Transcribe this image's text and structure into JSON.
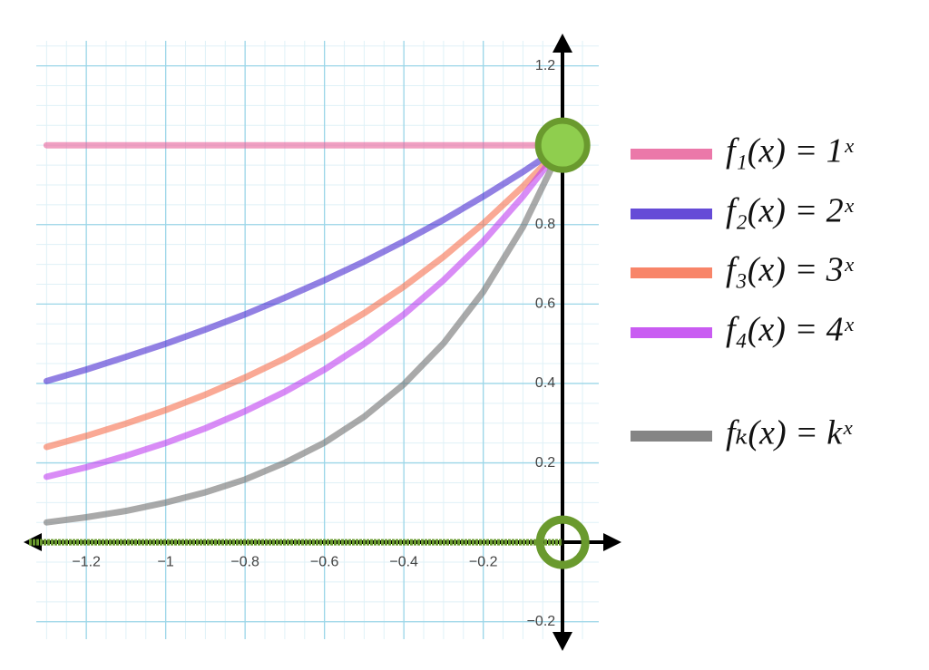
{
  "chart_data": {
    "type": "line",
    "x": [
      -1.3,
      -1.2,
      -1.1,
      -1.0,
      -0.9,
      -0.8,
      -0.7,
      -0.6,
      -0.5,
      -0.4,
      -0.3,
      -0.2,
      -0.1,
      0
    ],
    "series": [
      {
        "name": "f₁(x) = 1ˣ",
        "color": "#e8609a",
        "values": [
          1,
          1,
          1,
          1,
          1,
          1,
          1,
          1,
          1,
          1,
          1,
          1,
          1,
          1
        ]
      },
      {
        "name": "f₂(x) = 2ˣ",
        "color": "#4a2bd0",
        "values": [
          0.406,
          0.435,
          0.467,
          0.5,
          0.536,
          0.574,
          0.616,
          0.66,
          0.707,
          0.758,
          0.812,
          0.871,
          0.933,
          1
        ]
      },
      {
        "name": "f₃(x) = 3ˣ",
        "color": "#f7704f",
        "values": [
          0.24,
          0.268,
          0.299,
          0.333,
          0.372,
          0.415,
          0.463,
          0.517,
          0.577,
          0.644,
          0.719,
          0.803,
          0.896,
          1
        ]
      },
      {
        "name": "f₄(x) = 4ˣ",
        "color": "#c040f0",
        "values": [
          0.165,
          0.189,
          0.218,
          0.25,
          0.287,
          0.33,
          0.379,
          0.435,
          0.5,
          0.574,
          0.66,
          0.758,
          0.871,
          1
        ]
      },
      {
        "name": "fₖ(x) = kˣ",
        "color": "#707070",
        "values": [
          0.05,
          0.063,
          0.079,
          0.1,
          0.126,
          0.158,
          0.2,
          0.251,
          0.316,
          0.398,
          0.501,
          0.631,
          0.794,
          1
        ]
      }
    ],
    "xlim": [
      -1.326,
      0.091
    ],
    "ylim": [
      -0.244,
      1.263
    ],
    "xticks": [
      {
        "value": -1.2,
        "label": "−1.2"
      },
      {
        "value": -1,
        "label": "−1"
      },
      {
        "value": -0.8,
        "label": "−0.8"
      },
      {
        "value": -0.6,
        "label": "−0.6"
      },
      {
        "value": -0.4,
        "label": "−0.4"
      },
      {
        "value": -0.2,
        "label": "−0.2"
      }
    ],
    "yticks": [
      {
        "value": -0.2,
        "label": "−0.2"
      },
      0.2,
      0.4,
      0.6,
      0.8,
      1.2
    ],
    "grid": true,
    "minor_grid": true,
    "asymptote_y": 0,
    "point_color": "#6a9a2e",
    "points": [
      {
        "x": 0,
        "y": 1,
        "filled": true
      },
      {
        "x": 0,
        "y": 0,
        "filled": false
      }
    ]
  }
}
